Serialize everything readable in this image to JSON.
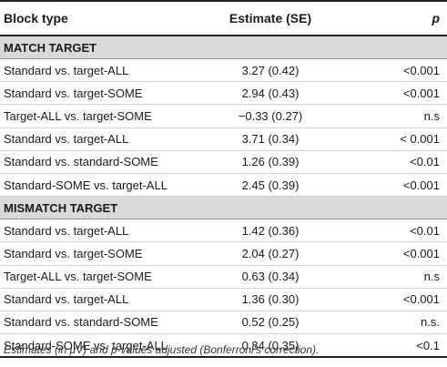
{
  "table": {
    "headers": {
      "block_type": "Block type",
      "estimate": "Estimate (SE)",
      "p": "p"
    },
    "sections": [
      {
        "title": "MATCH TARGET",
        "rows": [
          {
            "block": "Standard vs. target-ALL",
            "estimate": "3.27 (0.42)",
            "p": "<0.001"
          },
          {
            "block": "Standard vs. target-SOME",
            "estimate": "2.94 (0.43)",
            "p": "<0.001"
          },
          {
            "block": "Target-ALL vs. target-SOME",
            "estimate": "−0.33 (0.27)",
            "p": "n.s"
          },
          {
            "block": "Standard vs. target-ALL",
            "estimate": "3.71 (0.34)",
            "p": "< 0.001"
          },
          {
            "block": "Standard vs. standard-SOME",
            "estimate": "1.26 (0.39)",
            "p": "<0.01"
          },
          {
            "block": "Standard-SOME vs. target-ALL",
            "estimate": "2.45 (0.39)",
            "p": "<0.001"
          }
        ]
      },
      {
        "title": "MISMATCH TARGET",
        "rows": [
          {
            "block": "Standard vs. target-ALL",
            "estimate": "1.42 (0.36)",
            "p": "<0.01"
          },
          {
            "block": "Standard vs. target-SOME",
            "estimate": "2.04 (0.27)",
            "p": "<0.001"
          },
          {
            "block": "Target-ALL vs. target-SOME",
            "estimate": "0.63 (0.34)",
            "p": "n.s"
          },
          {
            "block": "Standard vs. target-ALL",
            "estimate": "1.36 (0.30)",
            "p": "<0.001"
          },
          {
            "block": "Standard vs. standard-SOME",
            "estimate": "0.52 (0.25)",
            "p": "n.s."
          },
          {
            "block": "Standard-SOME vs. target-ALL",
            "estimate": "0.84 (0.35)",
            "p": "<0.1"
          }
        ]
      }
    ]
  },
  "footnote": "Estimates (in μV) and p-values adjusted (Bonferroni's correction)."
}
